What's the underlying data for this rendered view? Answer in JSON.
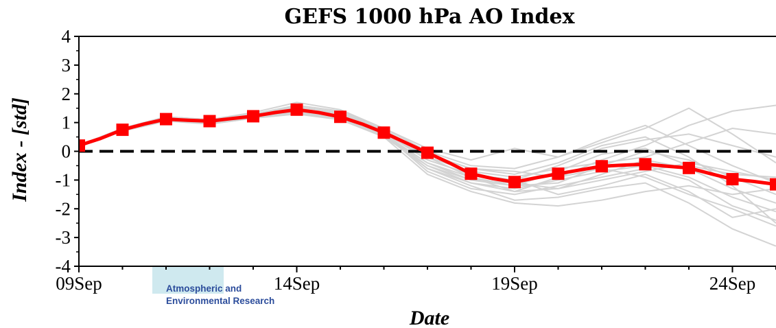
{
  "chart_data": {
    "type": "line",
    "title": "GEFS 1000 hPa AO Index",
    "xlabel": "Date",
    "ylabel": "Index - [std]",
    "ylim": [
      -4,
      4
    ],
    "yticks": [
      4,
      3,
      2,
      1,
      0,
      -1,
      -2,
      -3,
      -4
    ],
    "xlim": [
      "09Sep",
      "25Sep"
    ],
    "xtick_labels": [
      "09Sep",
      "14Sep",
      "19Sep",
      "24Sep"
    ],
    "xtick_days": [
      9,
      14,
      19,
      24
    ],
    "zero_line": {
      "value": 0,
      "style": "dashed",
      "color": "#000000"
    },
    "mean_series": {
      "name": "",
      "color": "#ff0000",
      "marker": "square",
      "x": [
        9,
        9.5,
        10,
        10.5,
        11,
        11.5,
        12,
        12.5,
        13,
        13.5,
        14,
        14.5,
        15,
        15.5,
        16,
        16.5,
        17,
        17.5,
        18,
        18.5,
        19,
        19.5,
        20,
        20.5,
        21,
        21.5,
        22,
        22.5,
        23,
        23.5,
        24,
        24.5,
        25
      ],
      "y": [
        0.2,
        0.45,
        0.75,
        0.95,
        1.12,
        1.08,
        1.05,
        1.14,
        1.22,
        1.35,
        1.45,
        1.35,
        1.2,
        0.95,
        0.65,
        0.3,
        -0.05,
        -0.4,
        -0.78,
        -0.95,
        -1.07,
        -0.92,
        -0.78,
        -0.65,
        -0.52,
        -0.48,
        -0.45,
        -0.52,
        -0.58,
        -0.78,
        -0.97,
        -1.05,
        -1.15
      ]
    },
    "marker_x": [
      9,
      10,
      11,
      12,
      13,
      14,
      15,
      16,
      17,
      18,
      19,
      20,
      21,
      22,
      23,
      24,
      25
    ],
    "ensemble": {
      "color": "#d3d3d3",
      "x": [
        9,
        10,
        11,
        12,
        13,
        14,
        15,
        16,
        17,
        18,
        19,
        20,
        21,
        22,
        23,
        24,
        25
      ],
      "members": [
        [
          0.2,
          0.8,
          1.2,
          1.1,
          1.3,
          1.6,
          1.4,
          0.8,
          0.1,
          -0.3,
          0.1,
          -0.2,
          0.3,
          0.8,
          1.5,
          0.6,
          -0.4
        ],
        [
          0.2,
          0.7,
          1.1,
          1.0,
          1.2,
          1.4,
          1.2,
          0.6,
          -0.2,
          -0.9,
          -1.4,
          -0.9,
          -0.3,
          0.2,
          0.9,
          1.4,
          1.6
        ],
        [
          0.2,
          0.75,
          1.15,
          1.05,
          1.25,
          1.5,
          1.3,
          0.7,
          -0.1,
          -0.6,
          -0.8,
          -0.4,
          0.2,
          0.5,
          -0.2,
          -1.2,
          -2.5
        ],
        [
          0.2,
          0.7,
          1.1,
          0.95,
          1.15,
          1.35,
          1.1,
          0.5,
          -0.5,
          -1.1,
          -1.3,
          -1.0,
          -0.7,
          -0.5,
          -0.9,
          -1.6,
          -2.1
        ],
        [
          0.2,
          0.8,
          1.2,
          1.1,
          1.3,
          1.5,
          1.3,
          0.7,
          -0.3,
          -0.8,
          -1.0,
          -1.5,
          -1.2,
          -0.8,
          -1.4,
          -2.3,
          -2.0
        ],
        [
          0.2,
          0.75,
          1.1,
          1.0,
          1.2,
          1.45,
          1.2,
          0.6,
          -0.6,
          -1.2,
          -1.7,
          -1.6,
          -1.3,
          -1.1,
          -1.8,
          -2.7,
          -3.3
        ],
        [
          0.2,
          0.7,
          1.05,
          0.95,
          1.15,
          1.3,
          1.1,
          0.55,
          -0.4,
          -1.0,
          -1.2,
          -0.7,
          -0.1,
          0.1,
          -0.5,
          -0.8,
          -0.9
        ],
        [
          0.2,
          0.8,
          1.2,
          1.1,
          1.35,
          1.7,
          1.45,
          0.8,
          0.0,
          -0.5,
          -0.6,
          -0.2,
          0.4,
          0.9,
          0.2,
          -0.5,
          -1.1
        ],
        [
          0.2,
          0.75,
          1.1,
          1.0,
          1.2,
          1.4,
          1.2,
          0.6,
          -0.7,
          -1.3,
          -1.5,
          -1.2,
          -0.9,
          -0.6,
          -1.0,
          -1.9,
          -2.4
        ],
        [
          0.2,
          0.7,
          1.1,
          1.05,
          1.25,
          1.5,
          1.25,
          0.7,
          -0.2,
          -0.7,
          -0.9,
          -0.6,
          -0.4,
          -0.2,
          0.3,
          0.8,
          0.6
        ],
        [
          0.2,
          0.8,
          1.15,
          1.05,
          1.25,
          1.45,
          1.2,
          0.6,
          -0.5,
          -1.0,
          -1.1,
          -1.3,
          -0.8,
          -0.3,
          -0.6,
          -1.3,
          -1.8
        ],
        [
          0.2,
          0.75,
          1.1,
          1.0,
          1.2,
          1.4,
          1.15,
          0.5,
          -0.8,
          -1.4,
          -1.8,
          -1.9,
          -1.7,
          -1.4,
          -1.2,
          -1.5,
          -1.3
        ],
        [
          0.2,
          0.7,
          1.1,
          1.0,
          1.2,
          1.35,
          1.15,
          0.65,
          -0.3,
          -0.8,
          -1.0,
          -0.5,
          0.1,
          0.4,
          0.6,
          0.2,
          -0.2
        ],
        [
          0.2,
          0.8,
          1.2,
          1.1,
          1.3,
          1.55,
          1.35,
          0.75,
          -0.1,
          -0.6,
          -0.7,
          -0.9,
          -0.6,
          -0.9,
          -1.5,
          -2.0,
          -2.6
        ],
        [
          0.2,
          0.75,
          1.15,
          1.05,
          1.2,
          1.4,
          1.2,
          0.6,
          -0.4,
          -0.9,
          -1.2,
          -1.1,
          -0.5,
          0.0,
          -0.3,
          -0.9,
          -1.5
        ],
        [
          0.2,
          0.7,
          1.1,
          1.0,
          1.2,
          1.4,
          1.15,
          0.55,
          -0.6,
          -1.1,
          -1.4,
          -1.3,
          -1.0,
          -0.7,
          -0.4,
          -0.7,
          -1.0
        ]
      ]
    },
    "logo": {
      "line1": "Atmospheric and",
      "line2": "Environmental Research",
      "color": "#2b4c9b",
      "badge_color": "#cfe9ef"
    }
  }
}
